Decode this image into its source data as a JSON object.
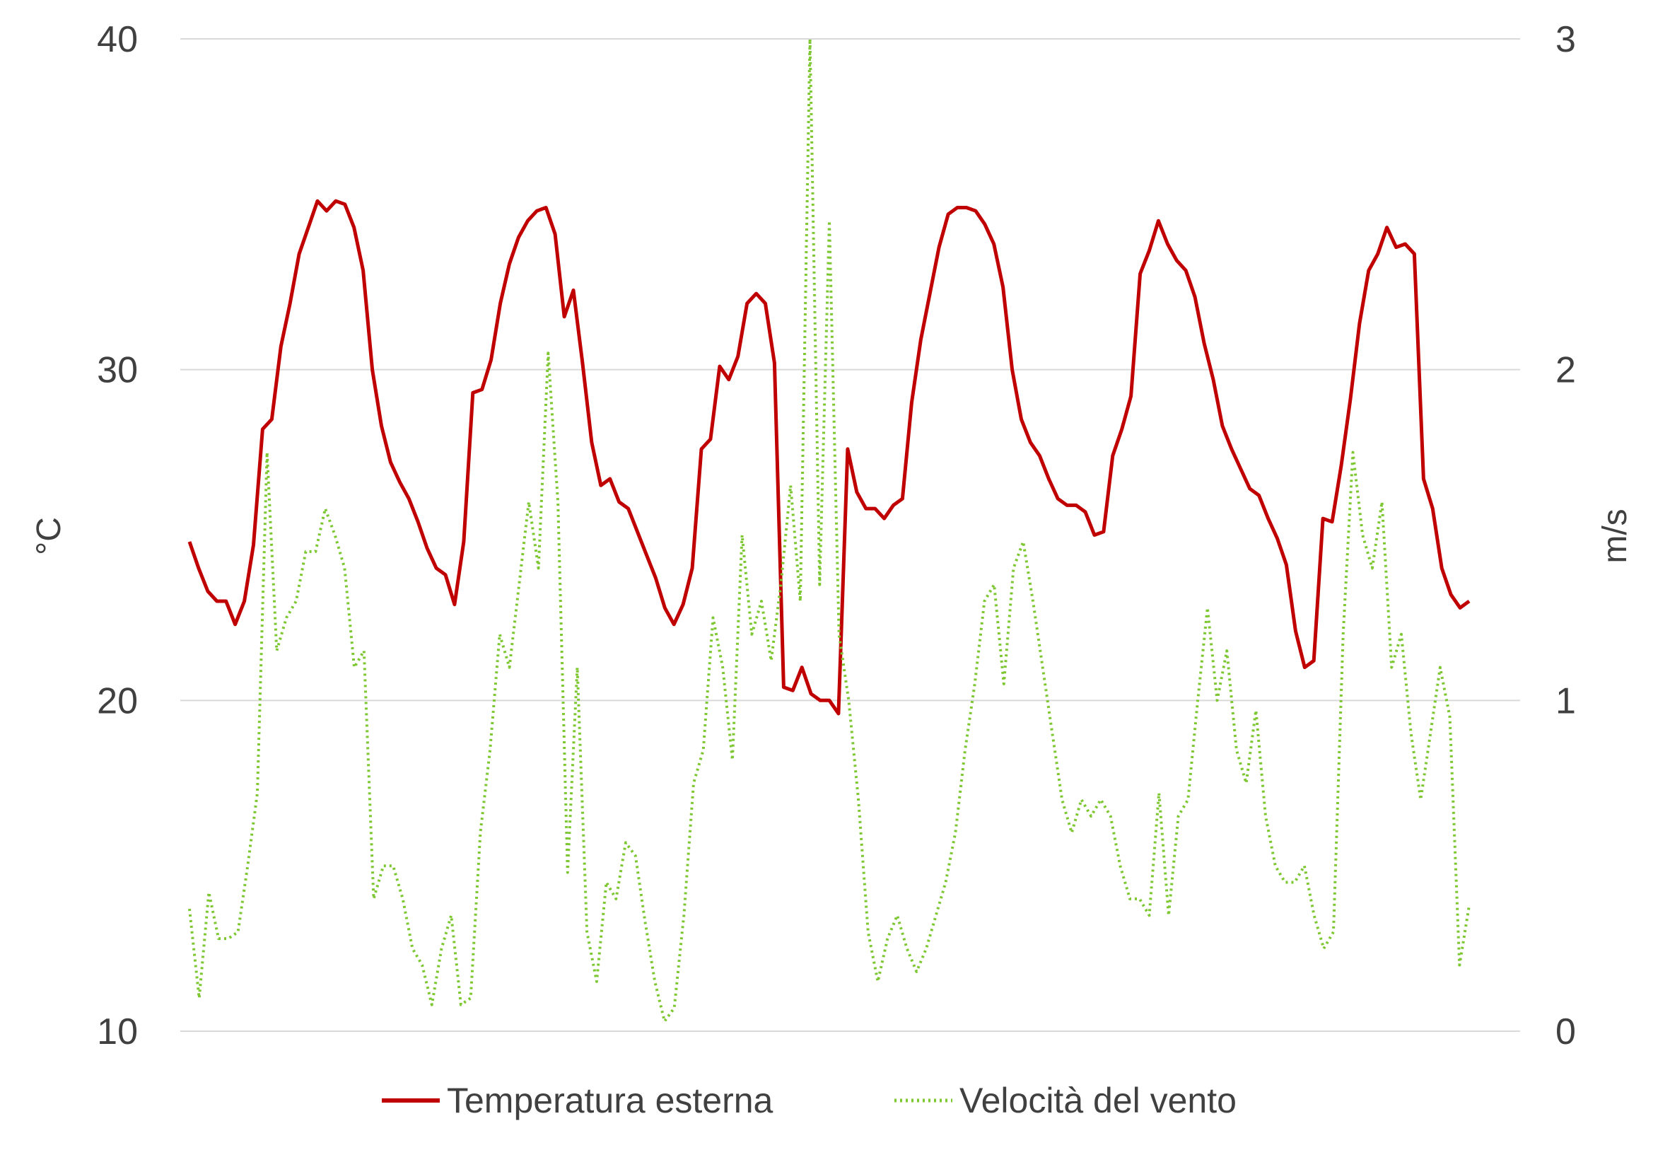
{
  "chart_data": {
    "type": "line",
    "title": "",
    "ylabel_left": "°C",
    "ylabel_right": "m/s",
    "ylim_left": [
      10,
      40
    ],
    "ylim_right": [
      0,
      3
    ],
    "yticks_left": [
      "10",
      "20",
      "30",
      "40"
    ],
    "yticks_right": [
      "0",
      "1",
      "2",
      "3"
    ],
    "grid": true,
    "legend_position": "bottom",
    "series": [
      {
        "name": "Temperatura esterna",
        "axis": "left",
        "color": "#C00000",
        "style": "solid",
        "values": [
          24.8,
          24.0,
          23.3,
          23.0,
          23.0,
          22.3,
          23.0,
          24.7,
          28.2,
          28.5,
          30.7,
          32.0,
          33.5,
          34.3,
          35.1,
          34.8,
          35.1,
          35.0,
          34.3,
          33.0,
          30.0,
          28.3,
          27.2,
          26.6,
          26.1,
          25.4,
          24.6,
          24.0,
          23.8,
          22.9,
          24.8,
          29.3,
          29.4,
          30.3,
          32.0,
          33.2,
          34.0,
          34.5,
          34.8,
          34.9,
          34.1,
          31.6,
          32.4,
          30.2,
          27.8,
          26.5,
          26.7,
          26.0,
          25.8,
          25.1,
          24.4,
          23.7,
          22.8,
          22.3,
          22.9,
          24.0,
          27.6,
          27.9,
          30.1,
          29.7,
          30.4,
          32.0,
          32.3,
          32.0,
          30.2,
          20.4,
          20.3,
          21.0,
          20.2,
          20.0,
          20.0,
          19.6,
          27.6,
          26.3,
          25.8,
          25.8,
          25.5,
          25.9,
          26.1,
          29.0,
          30.9,
          32.3,
          33.7,
          34.7,
          34.9,
          34.9,
          34.8,
          34.4,
          33.8,
          32.5,
          30.0,
          28.5,
          27.8,
          27.4,
          26.7,
          26.1,
          25.9,
          25.9,
          25.7,
          25.0,
          25.1,
          27.4,
          28.2,
          29.2,
          32.9,
          33.6,
          34.5,
          33.8,
          33.3,
          33.0,
          32.2,
          30.8,
          29.7,
          28.3,
          27.6,
          27.0,
          26.4,
          26.2,
          25.5,
          24.9,
          24.1,
          22.1,
          21.0,
          21.2,
          25.5,
          25.4,
          27.1,
          29.1,
          31.4,
          33.0,
          33.5,
          34.3,
          33.7,
          33.8,
          33.5,
          26.7,
          25.8,
          24.0,
          23.2,
          22.8,
          23.0
        ]
      },
      {
        "name": "Velocità del vento",
        "axis": "right",
        "color": "#7DC732",
        "style": "dotted",
        "values": [
          0.37,
          0.1,
          0.42,
          0.28,
          0.28,
          0.3,
          0.5,
          0.72,
          1.75,
          1.15,
          1.25,
          1.3,
          1.45,
          1.45,
          1.58,
          1.5,
          1.4,
          1.1,
          1.15,
          0.4,
          0.5,
          0.5,
          0.4,
          0.25,
          0.2,
          0.08,
          0.25,
          0.35,
          0.08,
          0.1,
          0.6,
          0.85,
          1.2,
          1.1,
          1.35,
          1.6,
          1.4,
          2.05,
          1.6,
          0.48,
          1.1,
          0.3,
          0.15,
          0.45,
          0.4,
          0.57,
          0.53,
          0.33,
          0.15,
          0.03,
          0.07,
          0.35,
          0.75,
          0.85,
          1.25,
          1.1,
          0.82,
          1.5,
          1.2,
          1.3,
          1.12,
          1.35,
          1.65,
          1.3,
          3.0,
          1.35,
          2.45,
          1.2,
          1.0,
          0.7,
          0.3,
          0.15,
          0.28,
          0.35,
          0.25,
          0.18,
          0.25,
          0.35,
          0.45,
          0.6,
          0.85,
          1.05,
          1.3,
          1.35,
          1.05,
          1.4,
          1.48,
          1.3,
          1.1,
          0.9,
          0.7,
          0.6,
          0.7,
          0.65,
          0.7,
          0.65,
          0.5,
          0.4,
          0.4,
          0.35,
          0.72,
          0.35,
          0.65,
          0.7,
          1.0,
          1.28,
          1.0,
          1.15,
          0.85,
          0.75,
          0.97,
          0.65,
          0.5,
          0.45,
          0.45,
          0.5,
          0.35,
          0.25,
          0.3,
          1.2,
          1.75,
          1.5,
          1.4,
          1.6,
          1.1,
          1.2,
          0.9,
          0.7,
          0.9,
          1.1,
          0.95,
          0.2,
          0.38
        ]
      }
    ]
  },
  "legend": {
    "items": [
      {
        "label": "Temperatura esterna"
      },
      {
        "label": "Velocità del vento"
      }
    ]
  }
}
